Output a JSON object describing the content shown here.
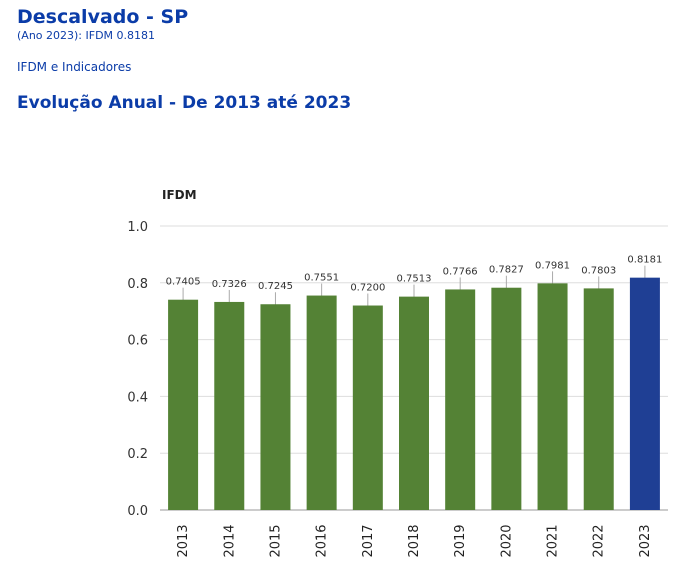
{
  "header": {
    "title": "Descalvado - SP",
    "subtitle": "(Ano 2023): IFDM 0.8181"
  },
  "nav": {
    "link_label": "IFDM e Indicadores"
  },
  "section": {
    "title": "Evolução Anual - De 2013 até 2023"
  },
  "colors": {
    "historic": "#548235",
    "current": "#1f3f94",
    "heading": "#0b3ca8"
  },
  "chart_data": {
    "type": "bar",
    "title": "",
    "ylabel": "IFDM",
    "xlabel": "",
    "categories": [
      "2013",
      "2014",
      "2015",
      "2016",
      "2017",
      "2018",
      "2019",
      "2020",
      "2021",
      "2022",
      "2023"
    ],
    "values": [
      0.7405,
      0.7326,
      0.7245,
      0.7551,
      0.72,
      0.7513,
      0.7766,
      0.7827,
      0.7981,
      0.7803,
      0.8181
    ],
    "value_labels": [
      "0.7405",
      "0.7326",
      "0.7245",
      "0.7551",
      "0.7200",
      "0.7513",
      "0.7766",
      "0.7827",
      "0.7981",
      "0.7803",
      "0.8181"
    ],
    "highlight_category": "2023",
    "ylim": [
      0,
      1.0
    ],
    "yticks": [
      "0.0",
      "0.2",
      "0.4",
      "0.6",
      "0.8",
      "1.0"
    ],
    "grid": true,
    "error_bars": true
  }
}
